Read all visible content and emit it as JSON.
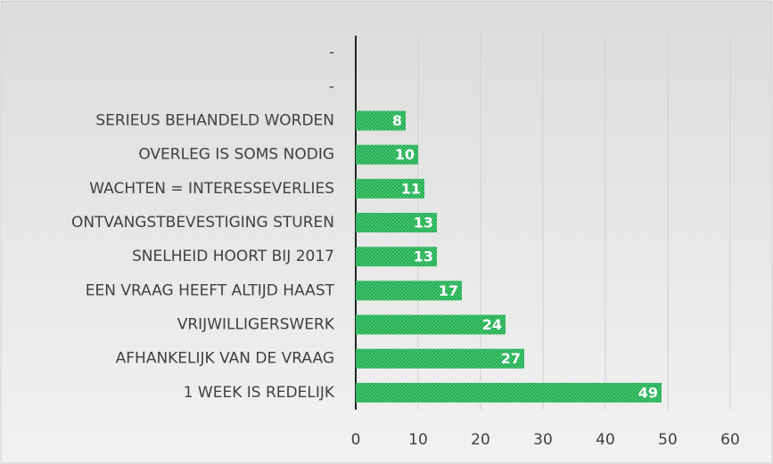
{
  "chart_data": {
    "type": "hbar",
    "categories": [
      "-",
      "-",
      "SERIEUS BEHANDELD WORDEN",
      "OVERLEG IS SOMS NODIG",
      "WACHTEN = INTERESSEVERLIES",
      "ONTVANGSTBEVESTIGING  STUREN",
      "SNELHEID HOORT BIJ 2017",
      "EEN VRAAG HEEFT ALTIJD HAAST",
      "VRIJWILLIGERSWERK",
      "AFHANKELIJK VAN DE VRAAG",
      "1 WEEK IS REDELIJK"
    ],
    "values": [
      null,
      null,
      8,
      10,
      11,
      13,
      13,
      17,
      24,
      27,
      49
    ],
    "color": "#1fb050",
    "xlim": [
      0,
      60
    ],
    "xticks": [
      0,
      10,
      20,
      30,
      40,
      50,
      60
    ],
    "grid": true
  }
}
